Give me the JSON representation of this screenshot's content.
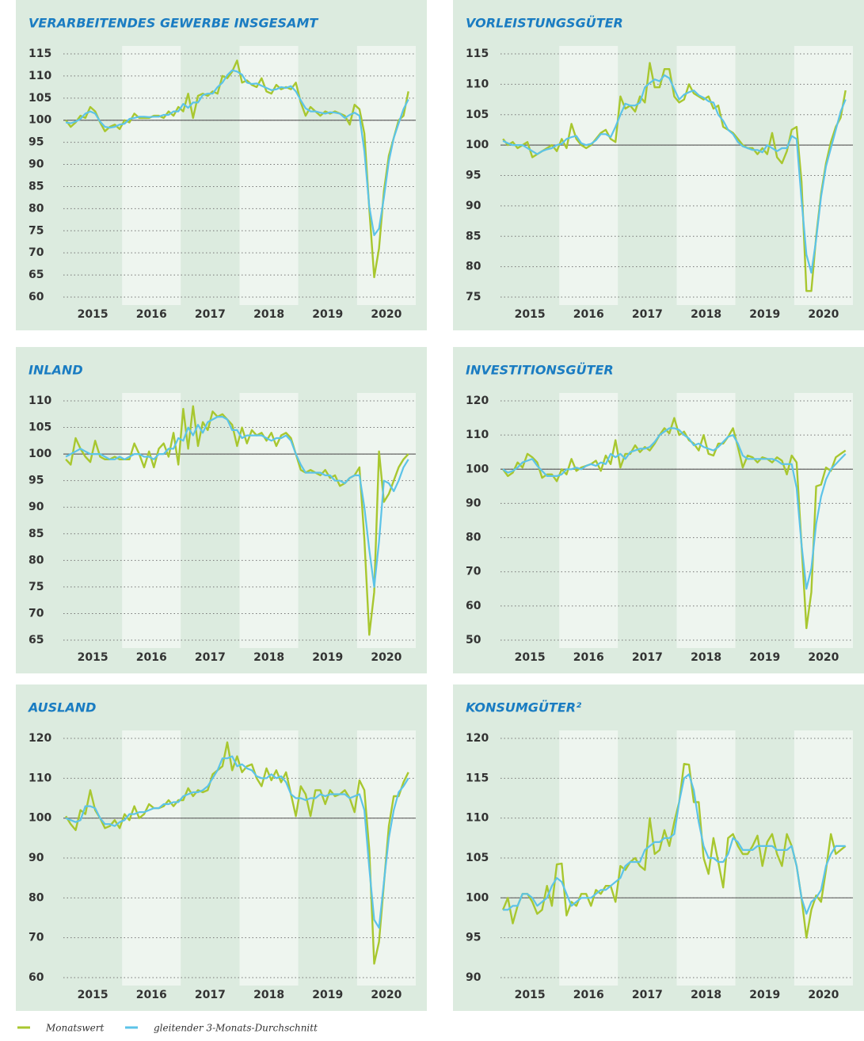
{
  "chart_data": [
    {
      "type": "line",
      "title": "VERARBEITENDES GEWERBE INSGESAMT",
      "xticks": [
        "2015",
        "2016",
        "2017",
        "2018",
        "2019",
        "2020"
      ],
      "ylim": [
        60,
        115
      ],
      "yticks": [
        60,
        65,
        70,
        75,
        80,
        85,
        90,
        95,
        100,
        105,
        110,
        115
      ],
      "baseline": 100,
      "grid": true,
      "series": [
        {
          "name": "Monatswert",
          "color": "#a8c72f",
          "values": [
            100,
            98.5,
            99.5,
            101,
            100.5,
            103,
            102,
            99.5,
            97.5,
            98.5,
            99,
            98,
            100,
            99.5,
            101.5,
            100.5,
            100.5,
            100.5,
            101,
            101,
            100.5,
            102,
            101,
            103,
            102,
            106,
            100.5,
            105.5,
            106,
            105.5,
            106.5,
            106,
            110,
            109.5,
            111,
            113.5,
            108.5,
            109,
            108,
            107.5,
            109.5,
            106.5,
            106,
            108,
            107,
            107.5,
            107,
            108.5,
            104,
            101,
            103,
            102,
            101,
            102,
            101.5,
            102,
            101.5,
            101,
            99,
            103.5,
            102.5,
            97,
            80,
            64.5,
            71,
            84,
            92,
            96,
            100,
            101,
            106.5
          ]
        },
        {
          "name": "gleitender 3-Monats-Durchschnitt",
          "color": "#5cc3e8",
          "values": [
            99.5,
            99.3,
            99.7,
            100.3,
            101.5,
            102,
            101.5,
            99.7,
            98.5,
            98.3,
            98.5,
            99,
            99.2,
            100.3,
            100.5,
            100.8,
            100.8,
            100.7,
            100.8,
            100.8,
            101.2,
            101.2,
            102,
            102,
            103.7,
            102.8,
            104,
            104,
            105.7,
            106,
            106,
            107.5,
            108.5,
            110.2,
            111.3,
            111,
            110.3,
            108.5,
            108.2,
            108.3,
            107.8,
            107.3,
            106.8,
            107,
            107.5,
            107.3,
            107.7,
            106.5,
            104.5,
            102.7,
            102,
            102,
            101.7,
            101.5,
            101.8,
            101.7,
            101.5,
            100.5,
            101.2,
            101.7,
            101,
            93,
            80.5,
            74,
            75.5,
            82.5,
            90.7,
            96,
            99.3,
            102.5,
            104.7
          ]
        }
      ]
    },
    {
      "type": "line",
      "title": "VORLEISTUNGSGÜTER",
      "xticks": [
        "2015",
        "2016",
        "2017",
        "2018",
        "2019",
        "2020"
      ],
      "ylim": [
        75,
        115
      ],
      "yticks": [
        75,
        80,
        85,
        90,
        95,
        100,
        105,
        110,
        115
      ],
      "baseline": 100,
      "grid": true,
      "series": [
        {
          "name": "Monatswert",
          "color": "#a8c72f",
          "values": [
            101,
            100,
            100.5,
            99.5,
            100,
            100.5,
            98,
            98.5,
            99,
            99.5,
            100,
            99,
            101,
            99.5,
            103.5,
            101,
            100,
            99.5,
            100,
            101,
            102,
            102.5,
            101,
            100.5,
            108,
            106,
            106.5,
            105.5,
            108,
            107,
            113.5,
            109.5,
            109.5,
            112.5,
            112.5,
            108,
            107,
            107.5,
            110,
            108.5,
            108,
            107.5,
            108,
            106,
            106.5,
            103,
            102.5,
            102,
            101,
            100,
            99.5,
            99.5,
            98.5,
            99.5,
            98.5,
            102,
            98,
            97,
            99,
            102.5,
            103,
            94,
            76,
            76,
            85,
            92,
            97,
            100.5,
            103,
            104.5,
            109
          ]
        },
        {
          "name": "gleitender 3-Monats-Durchschnitt",
          "color": "#5cc3e8",
          "values": [
            100.7,
            100.3,
            100,
            100,
            100,
            99.5,
            99,
            98.5,
            99,
            99.3,
            99.5,
            100,
            100.2,
            101,
            101.3,
            101.5,
            100.3,
            100,
            100.2,
            100.8,
            101.8,
            101.8,
            101.3,
            103,
            105,
            106.8,
            106.5,
            106.5,
            107,
            109.5,
            110.2,
            110.8,
            110.5,
            111.5,
            111,
            109.2,
            107.5,
            108.3,
            108.7,
            109,
            108.2,
            107.8,
            107.2,
            107,
            105,
            104,
            102.5,
            101.8,
            100.5,
            99.8,
            99.5,
            99.2,
            99.2,
            98.8,
            100,
            99.5,
            99,
            99.5,
            99.5,
            101.5,
            101,
            91,
            82,
            79,
            84.5,
            91.5,
            96.5,
            99.5,
            102.5,
            105.5,
            107.5
          ]
        }
      ]
    },
    {
      "type": "line",
      "title": "INLAND",
      "xticks": [
        "2015",
        "2016",
        "2017",
        "2018",
        "2019",
        "2020"
      ],
      "ylim": [
        65,
        110
      ],
      "yticks": [
        65,
        70,
        75,
        80,
        85,
        90,
        95,
        100,
        105,
        110
      ],
      "baseline": 100,
      "grid": true,
      "series": [
        {
          "name": "Monatswert",
          "color": "#a8c72f",
          "values": [
            99,
            98,
            103,
            101,
            99.5,
            98.5,
            102.5,
            99.5,
            99,
            99,
            99.5,
            99,
            99,
            99,
            102,
            100,
            97.5,
            100.5,
            97.5,
            101,
            102,
            99.5,
            104,
            98,
            108.5,
            101,
            109,
            101.5,
            106,
            104.5,
            108,
            107,
            107.5,
            106.5,
            105.5,
            101.5,
            105,
            102,
            104.5,
            103.5,
            104,
            102.5,
            104,
            101.5,
            103.5,
            104,
            103,
            100,
            97,
            96.5,
            97,
            96.5,
            96,
            97,
            95.5,
            96,
            94,
            94.5,
            95.5,
            96,
            97.5,
            84,
            66,
            74,
            100.5,
            91,
            92.5,
            95,
            97.5,
            99,
            100
          ]
        },
        {
          "name": "gleitender 3-Monats-Durchschnitt",
          "color": "#5cc3e8",
          "values": [
            99.5,
            100,
            100.5,
            101,
            100.5,
            100,
            100,
            100,
            99.5,
            99,
            99,
            99.5,
            99,
            99.5,
            100,
            100,
            99.5,
            99.5,
            99,
            100,
            100,
            101,
            101,
            103,
            102.5,
            105,
            103.5,
            105.5,
            104,
            106,
            106.5,
            107,
            107,
            106.5,
            104.5,
            104.5,
            103,
            103.5,
            103.5,
            103.5,
            103.5,
            103,
            102.5,
            103,
            103,
            103.5,
            102.5,
            100,
            98,
            96.5,
            96.5,
            96.5,
            96.5,
            96,
            96,
            95,
            95,
            94.5,
            95.5,
            96,
            96,
            90,
            82,
            75,
            83.5,
            95,
            94.5,
            93,
            95,
            97.5,
            99
          ]
        }
      ]
    },
    {
      "type": "line",
      "title": "INVESTITIONSGÜTER",
      "xticks": [
        "2015",
        "2016",
        "2017",
        "2018",
        "2019",
        "2020"
      ],
      "ylim": [
        50,
        120
      ],
      "yticks": [
        50,
        60,
        70,
        80,
        90,
        100,
        110,
        120
      ],
      "baseline": 100,
      "grid": true,
      "series": [
        {
          "name": "Monatswert",
          "color": "#a8c72f",
          "values": [
            100,
            98,
            99,
            102,
            100.5,
            104.5,
            103.5,
            102,
            97.5,
            98.5,
            98.5,
            96.5,
            100,
            98.5,
            103,
            99.5,
            100.5,
            101,
            101.5,
            102.5,
            99.5,
            104,
            101.5,
            108.5,
            100.5,
            104.5,
            104.5,
            107,
            105,
            106.5,
            105.5,
            107.5,
            110,
            112,
            110.5,
            115,
            110,
            111,
            108.5,
            107.5,
            105.5,
            110,
            104.5,
            104,
            107.5,
            107.5,
            109.5,
            112,
            106.5,
            100.5,
            104,
            103.5,
            102,
            103.5,
            103,
            102,
            103.5,
            102.5,
            98.5,
            104,
            102,
            78,
            53.5,
            64,
            95,
            95.5,
            100.5,
            99.5,
            103.5,
            104.5,
            105.5
          ]
        },
        {
          "name": "gleitender 3-Monats-Durchschnitt",
          "color": "#5cc3e8",
          "values": [
            100,
            99,
            99.5,
            100.5,
            102,
            102.5,
            103,
            101,
            99.5,
            98,
            98,
            98,
            98.5,
            100,
            100,
            100.5,
            100,
            101,
            101.5,
            101,
            102,
            101.5,
            104.5,
            103.5,
            104.5,
            103,
            105,
            105.5,
            106,
            106,
            106.5,
            108,
            110,
            111,
            112,
            112,
            111.5,
            110,
            109,
            107,
            107.5,
            106.5,
            106,
            105.5,
            106.5,
            108,
            109.5,
            110,
            107.5,
            104,
            103,
            103,
            103,
            103,
            103,
            103,
            102.5,
            101.5,
            101.5,
            101.5,
            94.5,
            78,
            65,
            71,
            84,
            92,
            97,
            100,
            101.5,
            103,
            104.5
          ]
        }
      ]
    },
    {
      "type": "line",
      "title": "AUSLAND",
      "xticks": [
        "2015",
        "2016",
        "2017",
        "2018",
        "2019",
        "2020"
      ],
      "ylim": [
        60,
        120
      ],
      "yticks": [
        60,
        70,
        80,
        90,
        100,
        110,
        120
      ],
      "baseline": 100,
      "grid": true,
      "series": [
        {
          "name": "Monatswert",
          "color": "#a8c72f",
          "values": [
            100.5,
            98.5,
            97,
            102,
            101,
            107,
            102,
            100,
            97.5,
            98,
            99.5,
            97.5,
            101,
            99.5,
            103,
            100,
            101,
            103.5,
            102.5,
            102.5,
            103,
            104.5,
            103,
            104.5,
            104.5,
            107.5,
            105.5,
            107,
            106.5,
            107,
            111,
            112,
            113,
            119,
            112,
            115.5,
            111.5,
            113,
            113.5,
            110,
            108,
            112.5,
            109.5,
            112,
            109,
            111.5,
            106,
            100.5,
            108,
            106,
            100.5,
            107,
            107,
            103.5,
            107,
            105.5,
            106,
            107,
            105,
            101.5,
            109.5,
            107,
            92,
            63.5,
            69,
            83.5,
            98,
            105.5,
            105.5,
            109,
            111.5
          ]
        },
        {
          "name": "gleitender 3-Monats-Durchschnitt",
          "color": "#5cc3e8",
          "values": [
            100,
            99.5,
            99,
            99.5,
            103,
            103,
            102.5,
            100,
            98.5,
            98.5,
            98,
            99,
            99.5,
            101,
            101,
            101.5,
            101.5,
            102,
            102.5,
            102.5,
            103.5,
            103.5,
            104,
            104,
            105.5,
            106,
            106.5,
            106.5,
            107,
            108,
            110,
            112,
            115,
            115,
            115.5,
            113,
            113.5,
            112.5,
            112,
            110.5,
            110,
            110,
            111,
            110,
            110.5,
            109,
            106,
            105,
            105,
            104.5,
            105,
            105,
            106,
            105.5,
            106,
            106,
            106,
            106,
            105,
            105.5,
            106,
            102,
            87.5,
            74.5,
            72.5,
            84,
            95,
            102,
            106.5,
            108,
            110
          ]
        }
      ]
    },
    {
      "type": "line",
      "title": "KONSUMGÜTER²",
      "xticks": [
        "2015",
        "2016",
        "2017",
        "2018",
        "2019",
        "2020"
      ],
      "ylim": [
        90,
        120
      ],
      "yticks": [
        90,
        95,
        100,
        105,
        110,
        115,
        120
      ],
      "baseline": 100,
      "grid": true,
      "series": [
        {
          "name": "Monatswert",
          "color": "#a8c72f",
          "values": [
            98.5,
            100,
            96.8,
            99,
            100.5,
            100.5,
            99.5,
            98,
            98.5,
            101.5,
            99,
            104.2,
            104.3,
            97.8,
            99.5,
            99,
            100.5,
            100.5,
            99,
            101,
            100.5,
            101.5,
            101.5,
            99.5,
            104,
            103.5,
            104.5,
            105,
            104,
            103.5,
            110,
            105.5,
            106,
            108.5,
            106.5,
            109.5,
            112,
            116.8,
            116.7,
            112,
            112,
            105,
            103,
            107.5,
            104.5,
            101.3,
            107.5,
            108,
            106.5,
            105.5,
            105.5,
            106.5,
            107.8,
            104,
            107,
            108,
            105.5,
            104,
            108,
            106.5,
            104,
            100,
            95,
            98.5,
            100.3,
            99.5,
            103.5,
            108,
            105.5,
            106,
            106.5
          ]
        },
        {
          "name": "gleitender 3-Monats-Durchschnitt",
          "color": "#5cc3e8",
          "values": [
            98.5,
            98.5,
            99,
            99,
            100.5,
            100.5,
            100,
            99,
            99.5,
            100,
            101.5,
            102.5,
            102,
            100.5,
            99,
            99.5,
            100,
            100,
            100,
            100.5,
            101,
            101,
            101.5,
            102,
            102.5,
            104,
            104.5,
            104.5,
            104.5,
            106,
            106.5,
            107,
            107,
            107.5,
            107.5,
            108,
            112,
            115,
            115.5,
            113.5,
            109.5,
            106.5,
            105,
            105,
            104.5,
            104.5,
            105.5,
            107.5,
            107,
            106,
            106,
            106,
            106.5,
            106.5,
            106.5,
            106.5,
            106,
            106,
            106,
            106.5,
            104,
            100,
            98,
            99.5,
            100,
            101,
            104,
            105.5,
            106.5,
            106.5,
            106.5
          ]
        }
      ]
    }
  ]
}
